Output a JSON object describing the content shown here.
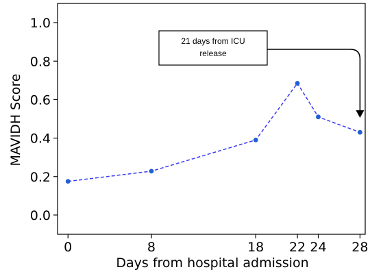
{
  "chart_data": {
    "type": "line",
    "xlabel": "Days from hospital admission",
    "ylabel": "MAVIDH Score",
    "x_ticks": [
      0,
      8,
      18,
      22,
      24,
      28
    ],
    "y_ticks": [
      0.0,
      0.2,
      0.4,
      0.6,
      0.8,
      1.0
    ],
    "y_tick_labels": [
      "0.0",
      "0.2",
      "0.4",
      "0.6",
      "0.8",
      "1.0"
    ],
    "xlim": [
      -1,
      28.5
    ],
    "ylim": [
      -0.1,
      1.1
    ],
    "grid": false,
    "series": [
      {
        "x": [
          0,
          8,
          18,
          22,
          24,
          28
        ],
        "y": [
          0.175,
          0.228,
          0.39,
          0.685,
          0.51,
          0.43
        ],
        "color": "#1f5fd6",
        "line_style": "dashed",
        "line_color": "#3b3bf5"
      }
    ],
    "annotation": {
      "line1": "21 days from ICU",
      "line2": "release",
      "points_to_x": 28
    }
  }
}
